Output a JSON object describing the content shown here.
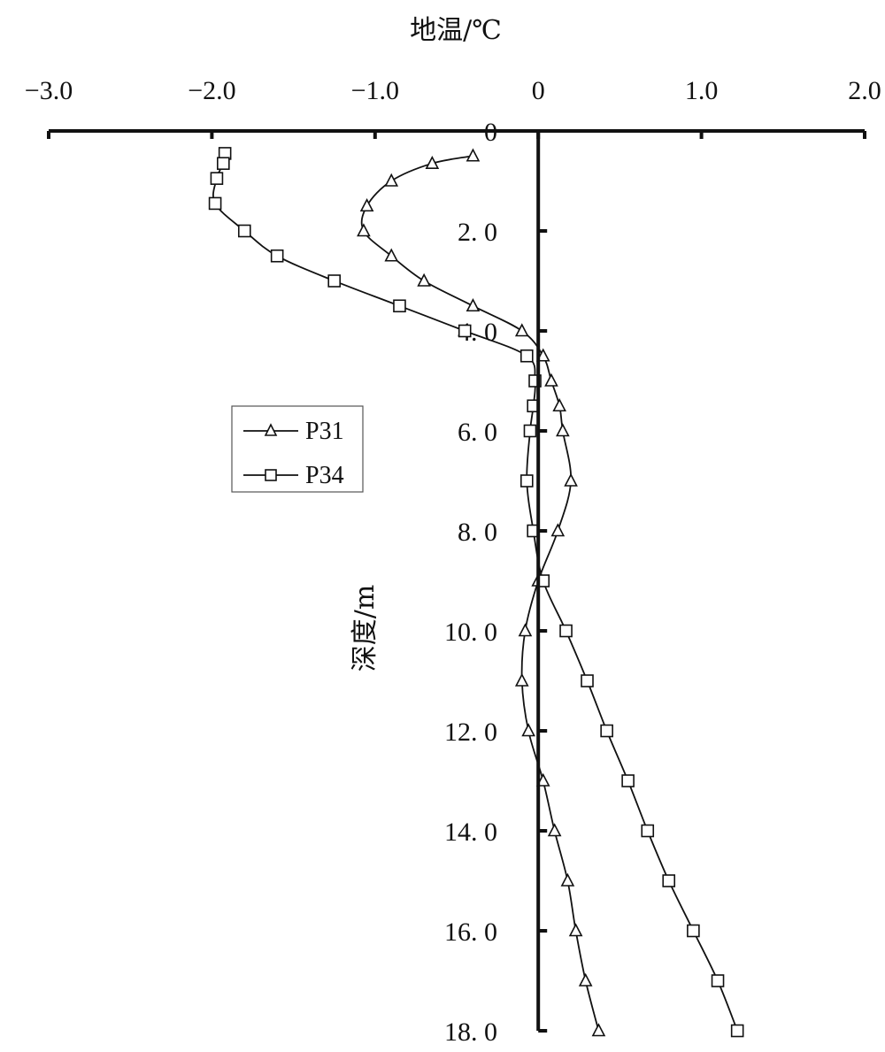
{
  "chart_data": {
    "type": "line",
    "xlabel": "地温/℃",
    "ylabel": "深度/m",
    "xlim": [
      -3.0,
      2.0
    ],
    "ylim": [
      0,
      18
    ],
    "y_inverted": true,
    "x_axis_position": "top",
    "x_ticks": [
      -3.0,
      -2.0,
      -1.0,
      0,
      1.0,
      2.0
    ],
    "x_tick_labels": [
      "−3.0",
      "−2.0",
      "−1.0",
      "0",
      "1.0",
      "2.0"
    ],
    "y_ticks": [
      0,
      2,
      4,
      6,
      8,
      10,
      12,
      14,
      16,
      18
    ],
    "y_tick_labels": [
      "0",
      "2. 0",
      "4. 0",
      "6. 0",
      "8. 0",
      "10. 0",
      "12. 0",
      "14. 0",
      "16. 0",
      "18. 0"
    ],
    "legend": {
      "placement": "middle-left"
    },
    "series": [
      {
        "name": "P31",
        "marker": "triangle",
        "points": [
          [
            -0.4,
            0.5
          ],
          [
            -0.65,
            0.65
          ],
          [
            -0.9,
            1.0
          ],
          [
            -1.05,
            1.5
          ],
          [
            -1.07,
            2.0
          ],
          [
            -0.9,
            2.5
          ],
          [
            -0.7,
            3.0
          ],
          [
            -0.4,
            3.5
          ],
          [
            -0.1,
            4.0
          ],
          [
            0.03,
            4.5
          ],
          [
            0.08,
            5.0
          ],
          [
            0.13,
            5.5
          ],
          [
            0.15,
            6.0
          ],
          [
            0.2,
            7.0
          ],
          [
            0.12,
            8.0
          ],
          [
            0.0,
            9.0
          ],
          [
            -0.08,
            10.0
          ],
          [
            -0.1,
            11.0
          ],
          [
            -0.06,
            12.0
          ],
          [
            0.03,
            13.0
          ],
          [
            0.1,
            14.0
          ],
          [
            0.18,
            15.0
          ],
          [
            0.23,
            16.0
          ],
          [
            0.29,
            17.0
          ],
          [
            0.37,
            18.0
          ]
        ]
      },
      {
        "name": "P34",
        "marker": "square",
        "points": [
          [
            -1.92,
            0.45
          ],
          [
            -1.93,
            0.65
          ],
          [
            -1.97,
            0.95
          ],
          [
            -1.98,
            1.45
          ],
          [
            -1.8,
            2.0
          ],
          [
            -1.6,
            2.5
          ],
          [
            -1.25,
            3.0
          ],
          [
            -0.85,
            3.5
          ],
          [
            -0.45,
            4.0
          ],
          [
            -0.07,
            4.5
          ],
          [
            -0.02,
            5.0
          ],
          [
            -0.03,
            5.5
          ],
          [
            -0.05,
            6.0
          ],
          [
            -0.07,
            7.0
          ],
          [
            -0.03,
            8.0
          ],
          [
            0.03,
            9.0
          ],
          [
            0.17,
            10.0
          ],
          [
            0.3,
            11.0
          ],
          [
            0.42,
            12.0
          ],
          [
            0.55,
            13.0
          ],
          [
            0.67,
            14.0
          ],
          [
            0.8,
            15.0
          ],
          [
            0.95,
            16.0
          ],
          [
            1.1,
            17.0
          ],
          [
            1.22,
            18.0
          ]
        ]
      }
    ]
  }
}
